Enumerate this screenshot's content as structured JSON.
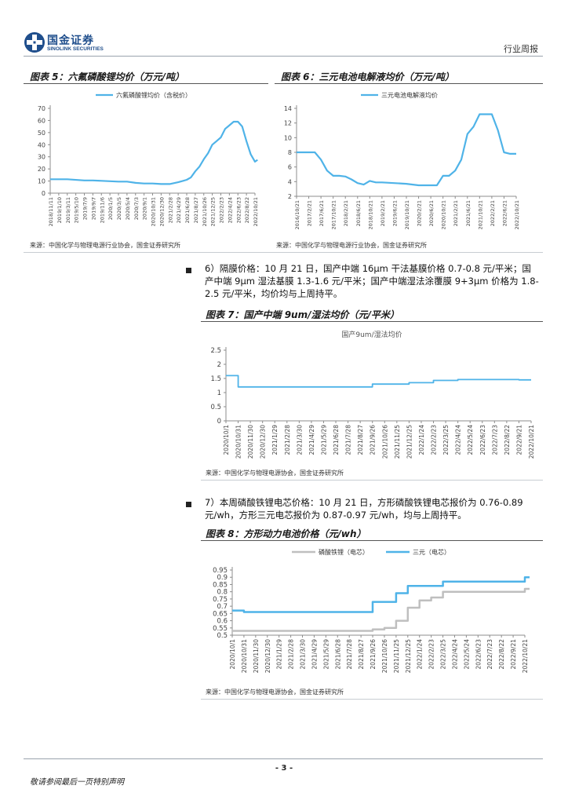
{
  "header": {
    "logo_cn": "国金证券",
    "logo_en": "SINOLINK SECURITIES",
    "report_type": "行业周报",
    "logo_color": "#1f4e8c"
  },
  "fig5": {
    "title": "图表 5：六氟磷酸锂均价（万元/吨）",
    "source": "来源：中国化学与物理电源行业协会，国金证券研究所",
    "chart_data": {
      "type": "line",
      "legend": "六氟磷酸锂均价（含税价）",
      "color": "#4fb3e8",
      "ylim": [
        0,
        70
      ],
      "yticks": [
        0,
        10,
        20,
        30,
        40,
        50,
        60,
        70
      ],
      "xticks": [
        "2018/11/11",
        "2019/1/10",
        "2019/3/11",
        "2019/5/10",
        "2019/7/9",
        "2019/9/7",
        "2019/11/6",
        "2020/1/5",
        "2020/3/5",
        "2020/5/4",
        "2020/7/3",
        "2020/9/1",
        "2020/10/31",
        "2020/12/30",
        "2021/2/28",
        "2021/4/29",
        "2021/6/28",
        "2021/8/27",
        "2021/10/26",
        "2021/12/25",
        "2022/2/23",
        "2022/4/24",
        "2022/6/23",
        "2022/8/22",
        "2022/10/21"
      ],
      "x": [
        0,
        2,
        4,
        5,
        8,
        9,
        10,
        11,
        12,
        13,
        14,
        15,
        15.5,
        16,
        16.5,
        17,
        17.5,
        18,
        18.5,
        19,
        19.5,
        20,
        20.5,
        21,
        21.5,
        22,
        22.5,
        23,
        23.5,
        24,
        24.3
      ],
      "values": [
        11.5,
        11.5,
        10.5,
        10.5,
        9.5,
        9.5,
        8.5,
        8,
        8,
        7.5,
        7.5,
        9,
        10,
        11,
        13,
        18,
        22,
        28,
        33,
        40,
        43,
        46,
        53,
        56,
        59,
        59,
        55,
        43,
        32,
        26,
        27.5
      ]
    }
  },
  "fig6": {
    "title": "图表 6：三元电池电解液均价（万元/吨）",
    "source": "来源：中国化学与物理电源行业协会，国金证券研究所",
    "chart_data": {
      "type": "line",
      "legend": "三元电池电解液均价",
      "color": "#4fb3e8",
      "ylim": [
        2,
        14
      ],
      "yticks": [
        2,
        4,
        6,
        8,
        10,
        12,
        14
      ],
      "xticks": [
        "2016/10/21",
        "2017/2/21",
        "2017/6/21",
        "2017/10/21",
        "2018/2/21",
        "2018/6/21",
        "2018/10/21",
        "2019/2/21",
        "2019/6/21",
        "2019/10/21",
        "2020/2/21",
        "2020/6/21",
        "2020/10/21",
        "2021/2/21",
        "2021/6/21",
        "2021/10/21",
        "2022/2/21",
        "2022/6/21",
        "2022/10/21"
      ],
      "x": [
        0,
        1.5,
        2,
        2.5,
        3,
        3.5,
        4,
        4.5,
        5,
        5.5,
        6,
        6.5,
        7,
        8,
        9,
        10,
        11,
        11.5,
        12,
        12.5,
        13,
        13.5,
        14,
        14.5,
        15,
        15.5,
        16,
        16.5,
        17,
        17.5,
        18
      ],
      "values": [
        8,
        8,
        7,
        5.5,
        4.8,
        4.8,
        4.7,
        4.3,
        3.8,
        3.6,
        4.1,
        3.9,
        3.9,
        3.8,
        3.7,
        3.5,
        3.5,
        3.5,
        4.8,
        4.8,
        5.5,
        7,
        10.5,
        11.5,
        13.2,
        13.2,
        13.2,
        11,
        8,
        7.8,
        7.8
      ]
    }
  },
  "para6": {
    "bullet_text": "6）隔膜价格：10 月 21 日，国产中端 16μm 干法基膜价格 0.7-0.8 元/平米；国产中端 9μm 湿法基膜 1.3-1.6 元/平米；国产中端湿法涂覆膜 9+3μm 价格为 1.8-2.5 元/平米，均价均与上周持平。"
  },
  "fig7": {
    "title": "图表 7：国产中端 9um/湿法均价（元/平米）",
    "source": "来源：中国化学与物理电源协会，国金证券研究所",
    "chart_data": {
      "type": "line",
      "legend": "国产9um/湿法均价",
      "color": "#4fb3e8",
      "ylim": [
        0,
        2.5
      ],
      "yticks": [
        0,
        0.5,
        1,
        1.5,
        2,
        2.5
      ],
      "xticks": [
        "2020/10/1",
        "2020/10/31",
        "2020/11/30",
        "2020/12/30",
        "2021/1/29",
        "2021/2/28",
        "2021/3/30",
        "2021/4/29",
        "2021/5/29",
        "2021/6/28",
        "2021/7/28",
        "2021/8/27",
        "2021/9/26",
        "2021/10/26",
        "2021/11/25",
        "2021/12/25",
        "2022/1/24",
        "2022/2/23",
        "2022/3/25",
        "2022/4/24",
        "2022/5/24",
        "2022/6/23",
        "2022/7/23",
        "2022/8/22",
        "2022/9/21",
        "2022/10/21"
      ],
      "x": [
        0,
        1,
        1,
        12,
        12,
        15,
        15,
        17,
        17,
        19,
        19,
        24,
        24,
        25
      ],
      "values": [
        1.6,
        1.6,
        1.2,
        1.2,
        1.3,
        1.3,
        1.35,
        1.35,
        1.43,
        1.43,
        1.46,
        1.46,
        1.45,
        1.45
      ]
    }
  },
  "para7": {
    "bullet_text": "7）本周磷酸铁锂电芯价格：10 月 21 日，方形磷酸铁锂电芯报价为 0.76-0.89 元/wh，方形三元电芯报价为 0.87-0.97 元/wh，均与上周持平。"
  },
  "fig8": {
    "title": "图表 8：方形动力电池价格（元/wh）",
    "source": "来源：中国化学与物理电源协会，国金证券研究所",
    "chart_data": {
      "type": "line",
      "ylim": [
        0.5,
        0.95
      ],
      "yticks": [
        0.5,
        0.55,
        0.6,
        0.65,
        0.7,
        0.75,
        0.8,
        0.85,
        0.9,
        0.95
      ],
      "xticks": [
        "2020/10/1",
        "2020/10/31",
        "2020/11/30",
        "2020/12/30",
        "2021/1/29",
        "2021/2/28",
        "2021/3/30",
        "2021/4/29",
        "2021/5/29",
        "2021/6/28",
        "2021/7/28",
        "2021/8/27",
        "2021/9/26",
        "2021/10/26",
        "2021/11/25",
        "2021/12/25",
        "2022/1/24",
        "2022/2/23",
        "2022/3/25",
        "2022/4/24",
        "2022/5/24",
        "2022/6/23",
        "2022/7/23",
        "2022/8/22",
        "2022/9/21",
        "2022/10/21"
      ],
      "series": [
        {
          "name": "磷酸铁锂（电芯）",
          "color": "#bfbfbf",
          "x": [
            0,
            12,
            12,
            13,
            13,
            14,
            14,
            15,
            15,
            16,
            16,
            17,
            17,
            18,
            18,
            25,
            25,
            25.4
          ],
          "values": [
            0.53,
            0.53,
            0.54,
            0.54,
            0.55,
            0.55,
            0.6,
            0.6,
            0.69,
            0.69,
            0.74,
            0.74,
            0.76,
            0.76,
            0.8,
            0.8,
            0.82,
            0.82
          ]
        },
        {
          "name": "三元（电芯）",
          "color": "#4fb3e8",
          "x": [
            0,
            1,
            1,
            12,
            12,
            14,
            14,
            15,
            15,
            18,
            18,
            25,
            25,
            25.4
          ],
          "values": [
            0.67,
            0.67,
            0.66,
            0.66,
            0.73,
            0.73,
            0.79,
            0.79,
            0.84,
            0.84,
            0.87,
            0.87,
            0.9,
            0.9
          ]
        }
      ]
    }
  },
  "footer": {
    "page_number": "- 3 -",
    "disclaimer": "敬请参阅最后一页特别声明"
  }
}
